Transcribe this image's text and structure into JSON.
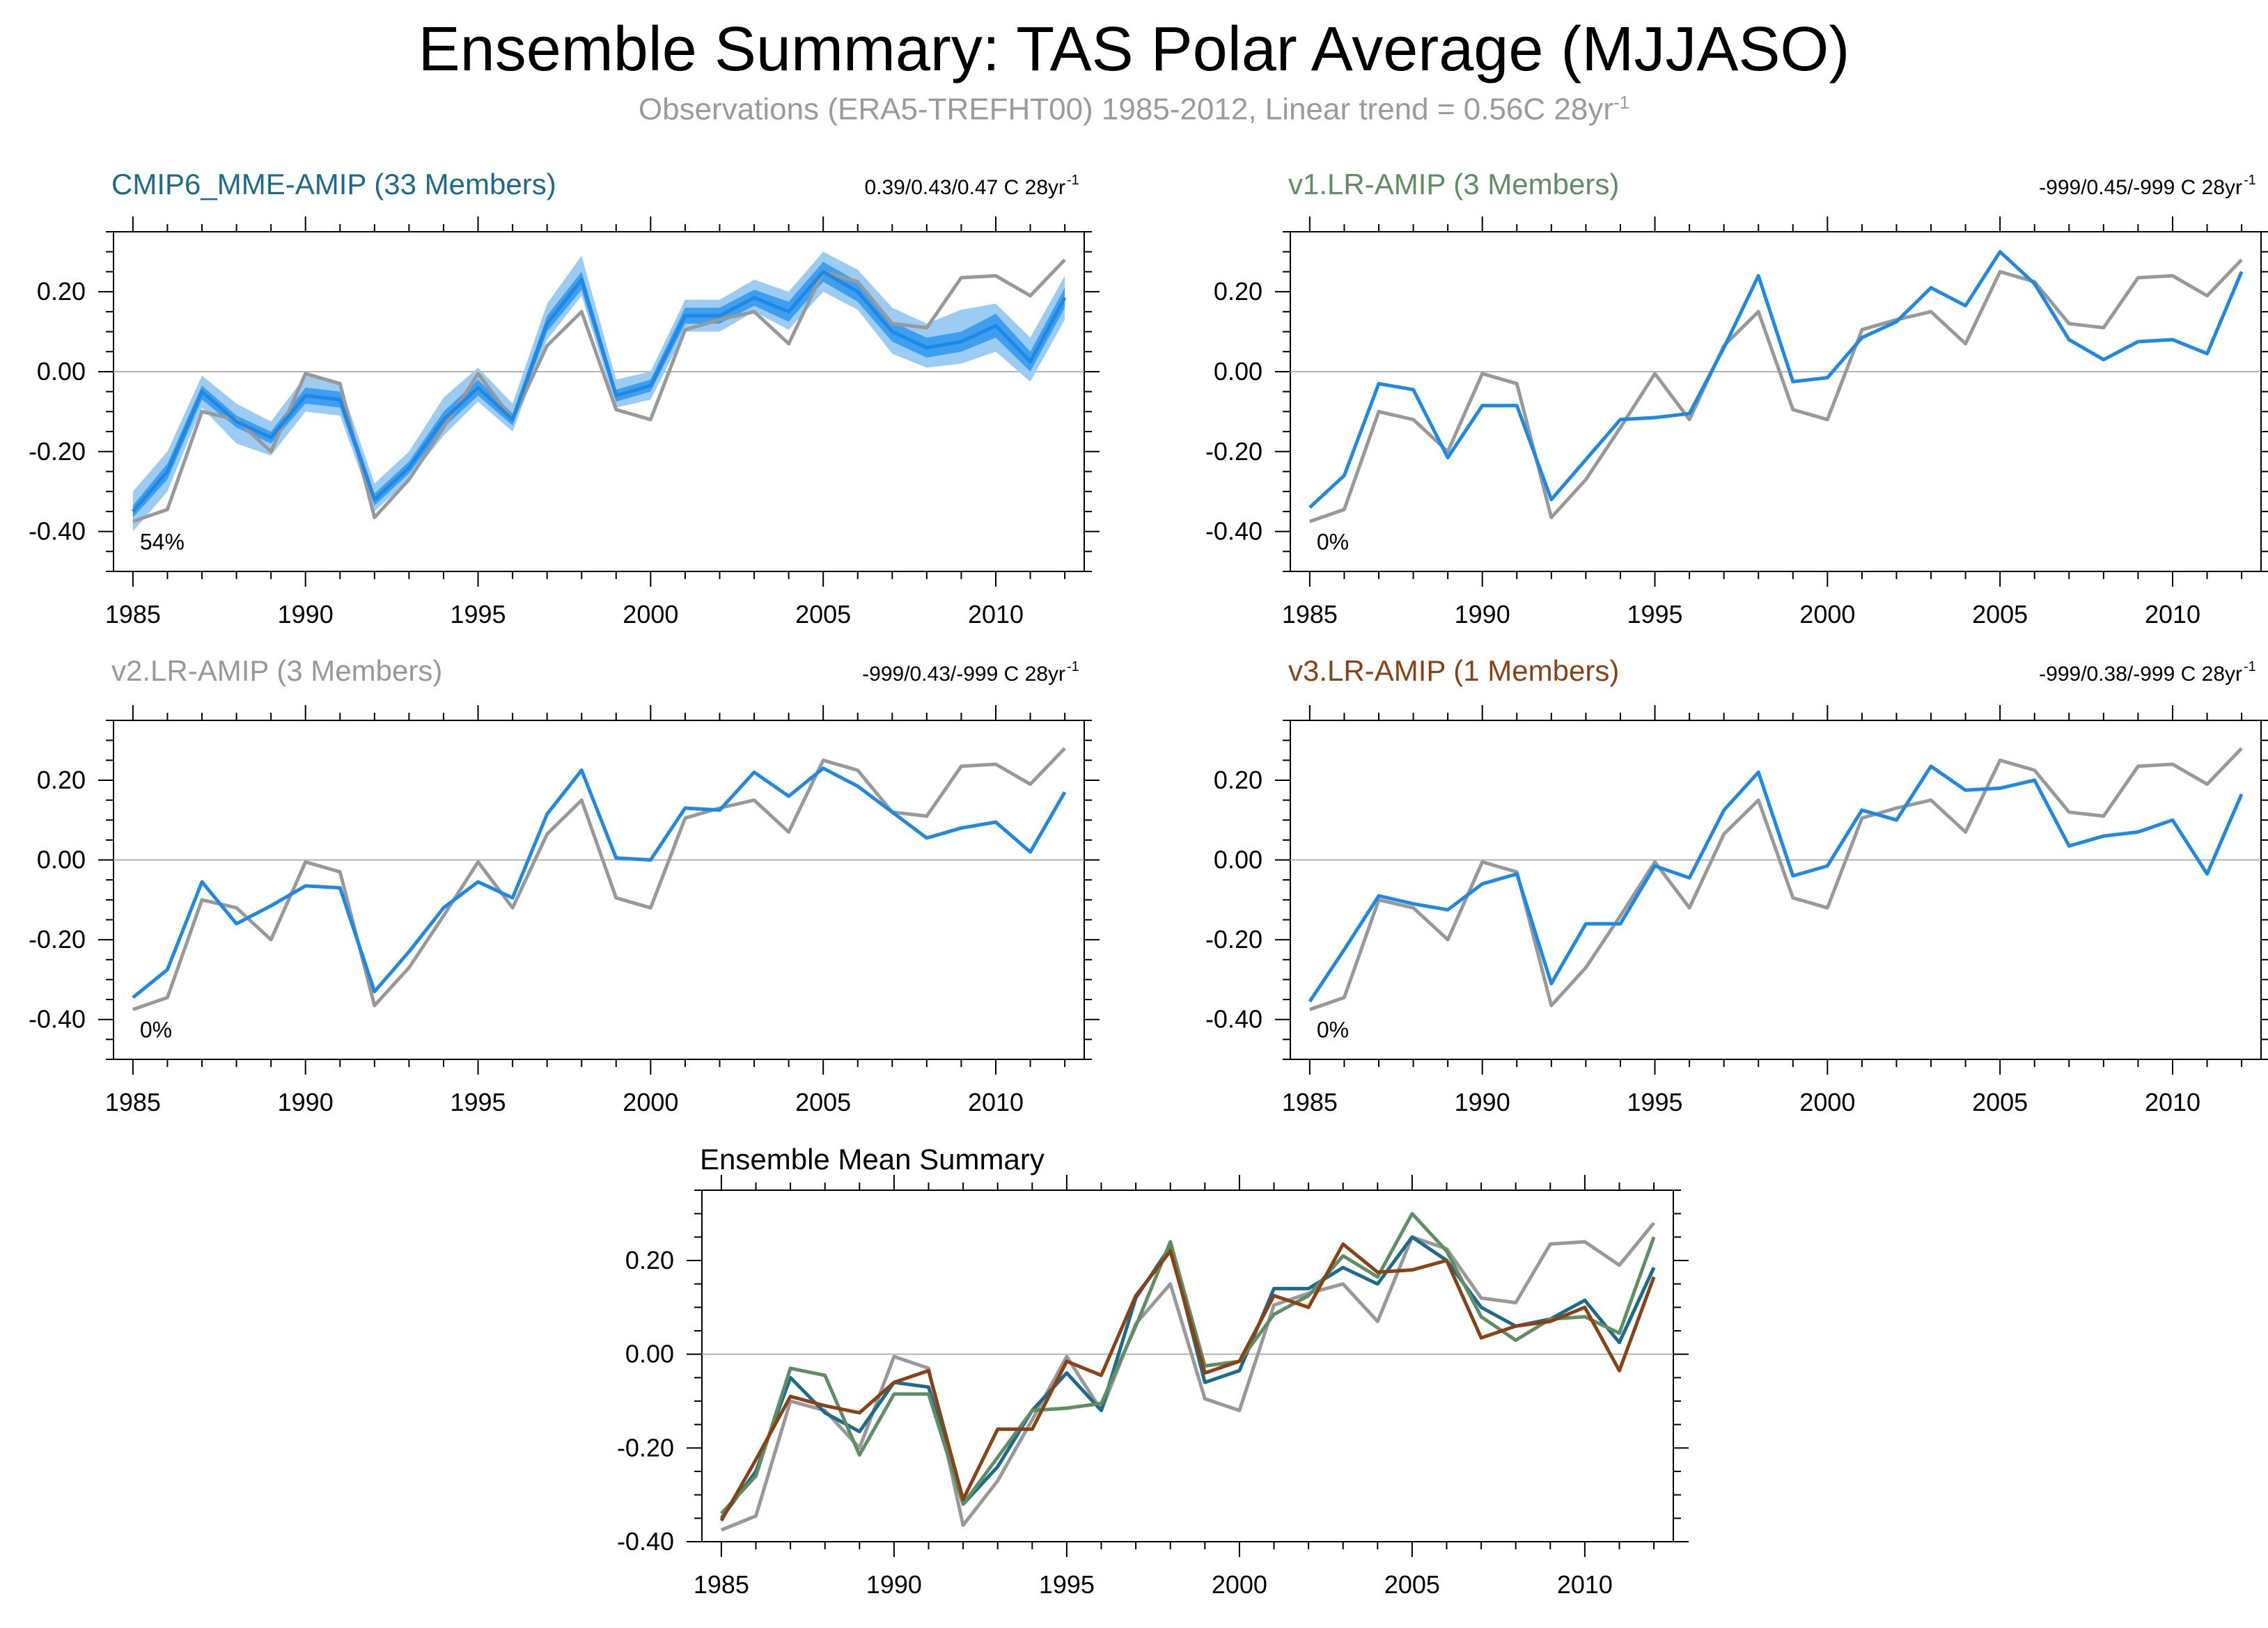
{
  "page": {
    "title": "Ensemble Summary: TAS Polar Average (MJJASO)",
    "subtitle_main": "Observations (ERA5-TREFHT00) 1985-2012, Linear trend = 0.56C 28yr",
    "subtitle_sup": "-1"
  },
  "colors": {
    "obs": "#999999",
    "model_line": "#1e88e5",
    "band_outer": "#9ccbf3",
    "band_inner": "#3e9ff0",
    "zero_line": "#b3b3b3",
    "title_cmip": "#1d6b8c",
    "title_v1": "#5f8e64",
    "title_v2": "#999999",
    "title_v3": "#8a4215"
  },
  "chart_data": [
    {
      "type": "line",
      "title": "CMIP6_MME-AMIP (33 Members)",
      "trend_text": "0.39/0.43/0.47 C 28yr",
      "trend_sup": "-1",
      "percent_label": "54%",
      "xlim": [
        1985,
        2012
      ],
      "ylim": [
        -0.5,
        0.35
      ],
      "xticks": [
        1985,
        1990,
        1995,
        2000,
        2005,
        2010
      ],
      "yticks": [
        -0.4,
        -0.2,
        0.0,
        0.2
      ],
      "ytick_labels": [
        "-0.40",
        "-0.20",
        "0.00",
        "0.20"
      ],
      "x": [
        1985,
        1986,
        1987,
        1988,
        1989,
        1990,
        1991,
        1992,
        1993,
        1994,
        1995,
        1996,
        1997,
        1998,
        1999,
        2000,
        2001,
        2002,
        2003,
        2004,
        2005,
        2006,
        2007,
        2008,
        2009,
        2010,
        2011,
        2012
      ],
      "series": [
        {
          "name": "",
          "role": "obs",
          "values": [
            -0.375,
            -0.345,
            -0.1,
            -0.12,
            -0.2,
            -0.005,
            -0.03,
            -0.365,
            -0.27,
            -0.14,
            -0.005,
            -0.12,
            0.065,
            0.15,
            -0.095,
            -0.12,
            0.105,
            0.13,
            0.15,
            0.07,
            0.25,
            0.225,
            0.12,
            0.11,
            0.235,
            0.24,
            0.19,
            0.28
          ]
        },
        {
          "name": "",
          "role": "mean",
          "values": [
            -0.35,
            -0.25,
            -0.05,
            -0.125,
            -0.165,
            -0.06,
            -0.07,
            -0.32,
            -0.24,
            -0.12,
            -0.04,
            -0.12,
            0.12,
            0.23,
            -0.06,
            -0.035,
            0.14,
            0.14,
            0.185,
            0.15,
            0.25,
            0.2,
            0.1,
            0.06,
            0.075,
            0.115,
            0.025,
            0.185
          ]
        },
        {
          "name": "",
          "role": "band_inner_lo",
          "values": [
            -0.365,
            -0.27,
            -0.07,
            -0.14,
            -0.18,
            -0.08,
            -0.09,
            -0.335,
            -0.255,
            -0.14,
            -0.06,
            -0.135,
            0.1,
            0.205,
            -0.075,
            -0.05,
            0.12,
            0.12,
            0.165,
            0.125,
            0.225,
            0.175,
            0.075,
            0.035,
            0.05,
            0.085,
            0.0,
            0.16
          ]
        },
        {
          "name": "",
          "role": "band_inner_hi",
          "values": [
            -0.335,
            -0.23,
            -0.035,
            -0.11,
            -0.15,
            -0.04,
            -0.05,
            -0.305,
            -0.225,
            -0.1,
            -0.02,
            -0.105,
            0.14,
            0.25,
            -0.045,
            -0.02,
            0.16,
            0.16,
            0.205,
            0.175,
            0.275,
            0.225,
            0.125,
            0.085,
            0.1,
            0.145,
            0.05,
            0.21
          ]
        },
        {
          "name": "",
          "role": "band_outer_lo",
          "values": [
            -0.4,
            -0.3,
            -0.09,
            -0.18,
            -0.21,
            -0.1,
            -0.11,
            -0.35,
            -0.27,
            -0.16,
            -0.075,
            -0.15,
            0.08,
            0.19,
            -0.09,
            -0.07,
            0.1,
            0.1,
            0.15,
            0.105,
            0.2,
            0.155,
            0.045,
            0.01,
            0.02,
            0.05,
            -0.025,
            0.13
          ]
        },
        {
          "name": "",
          "role": "band_outer_hi",
          "values": [
            -0.3,
            -0.2,
            -0.01,
            -0.08,
            -0.125,
            -0.01,
            -0.03,
            -0.28,
            -0.2,
            -0.065,
            0.01,
            -0.08,
            0.17,
            0.29,
            -0.02,
            0.0,
            0.18,
            0.18,
            0.23,
            0.2,
            0.3,
            0.255,
            0.16,
            0.12,
            0.155,
            0.17,
            0.085,
            0.24
          ]
        }
      ]
    },
    {
      "type": "line",
      "title": "v1.LR-AMIP (3 Members)",
      "trend_text": "-999/0.45/-999 C 28yr",
      "trend_sup": "-1",
      "percent_label": "0%",
      "xlim": [
        1985,
        2012
      ],
      "ylim": [
        -0.5,
        0.35
      ],
      "xticks": [
        1985,
        1990,
        1995,
        2000,
        2005,
        2010
      ],
      "yticks": [
        -0.4,
        -0.2,
        0.0,
        0.2
      ],
      "ytick_labels": [
        "-0.40",
        "-0.20",
        "0.00",
        "0.20"
      ],
      "x": [
        1985,
        1986,
        1987,
        1988,
        1989,
        1990,
        1991,
        1992,
        1993,
        1994,
        1995,
        1996,
        1997,
        1998,
        1999,
        2000,
        2001,
        2002,
        2003,
        2004,
        2005,
        2006,
        2007,
        2008,
        2009,
        2010,
        2011,
        2012
      ],
      "series": [
        {
          "name": "",
          "role": "obs",
          "values": [
            -0.375,
            -0.345,
            -0.1,
            -0.12,
            -0.2,
            -0.005,
            -0.03,
            -0.365,
            -0.27,
            -0.14,
            -0.005,
            -0.12,
            0.065,
            0.15,
            -0.095,
            -0.12,
            0.105,
            0.13,
            0.15,
            0.07,
            0.25,
            0.225,
            0.12,
            0.11,
            0.235,
            0.24,
            0.19,
            0.28
          ]
        },
        {
          "name": "",
          "role": "mean",
          "values": [
            -0.34,
            -0.26,
            -0.03,
            -0.045,
            -0.215,
            -0.085,
            -0.085,
            -0.32,
            -0.22,
            -0.12,
            -0.115,
            -0.105,
            0.06,
            0.24,
            -0.025,
            -0.015,
            0.085,
            0.125,
            0.21,
            0.165,
            0.3,
            0.22,
            0.08,
            0.03,
            0.075,
            0.08,
            0.045,
            0.25
          ]
        }
      ]
    },
    {
      "type": "line",
      "title": "v2.LR-AMIP (3 Members)",
      "trend_text": "-999/0.43/-999 C 28yr",
      "trend_sup": "-1",
      "percent_label": "0%",
      "xlim": [
        1985,
        2012
      ],
      "ylim": [
        -0.5,
        0.35
      ],
      "xticks": [
        1985,
        1990,
        1995,
        2000,
        2005,
        2010
      ],
      "yticks": [
        -0.4,
        -0.2,
        0.0,
        0.2
      ],
      "ytick_labels": [
        "-0.40",
        "-0.20",
        "0.00",
        "0.20"
      ],
      "x": [
        1985,
        1986,
        1987,
        1988,
        1989,
        1990,
        1991,
        1992,
        1993,
        1994,
        1995,
        1996,
        1997,
        1998,
        1999,
        2000,
        2001,
        2002,
        2003,
        2004,
        2005,
        2006,
        2007,
        2008,
        2009,
        2010,
        2011,
        2012
      ],
      "series": [
        {
          "name": "",
          "role": "obs",
          "values": [
            -0.375,
            -0.345,
            -0.1,
            -0.12,
            -0.2,
            -0.005,
            -0.03,
            -0.365,
            -0.27,
            -0.14,
            -0.005,
            -0.12,
            0.065,
            0.15,
            -0.095,
            -0.12,
            0.105,
            0.13,
            0.15,
            0.07,
            0.25,
            0.225,
            0.12,
            0.11,
            0.235,
            0.24,
            0.19,
            0.28
          ]
        },
        {
          "name": "",
          "role": "mean",
          "values": [
            -0.345,
            -0.275,
            -0.055,
            -0.16,
            -0.115,
            -0.065,
            -0.07,
            -0.33,
            -0.23,
            -0.12,
            -0.055,
            -0.095,
            0.115,
            0.225,
            0.005,
            0.0,
            0.13,
            0.125,
            0.22,
            0.16,
            0.23,
            0.185,
            0.12,
            0.055,
            0.08,
            0.095,
            0.02,
            0.17
          ]
        }
      ]
    },
    {
      "type": "line",
      "title": "v3.LR-AMIP (1 Members)",
      "trend_text": "-999/0.38/-999 C 28yr",
      "trend_sup": "-1",
      "percent_label": "0%",
      "xlim": [
        1985,
        2012
      ],
      "ylim": [
        -0.5,
        0.35
      ],
      "xticks": [
        1985,
        1990,
        1995,
        2000,
        2005,
        2010
      ],
      "yticks": [
        -0.4,
        -0.2,
        0.0,
        0.2
      ],
      "ytick_labels": [
        "-0.40",
        "-0.20",
        "0.00",
        "0.20"
      ],
      "x": [
        1985,
        1986,
        1987,
        1988,
        1989,
        1990,
        1991,
        1992,
        1993,
        1994,
        1995,
        1996,
        1997,
        1998,
        1999,
        2000,
        2001,
        2002,
        2003,
        2004,
        2005,
        2006,
        2007,
        2008,
        2009,
        2010,
        2011,
        2012
      ],
      "series": [
        {
          "name": "",
          "role": "obs",
          "values": [
            -0.375,
            -0.345,
            -0.1,
            -0.12,
            -0.2,
            -0.005,
            -0.03,
            -0.365,
            -0.27,
            -0.14,
            -0.005,
            -0.12,
            0.065,
            0.15,
            -0.095,
            -0.12,
            0.105,
            0.13,
            0.15,
            0.07,
            0.25,
            0.225,
            0.12,
            0.11,
            0.235,
            0.24,
            0.19,
            0.28
          ]
        },
        {
          "name": "",
          "role": "mean",
          "values": [
            -0.355,
            -0.225,
            -0.09,
            -0.11,
            -0.125,
            -0.06,
            -0.035,
            -0.31,
            -0.16,
            -0.16,
            -0.015,
            -0.045,
            0.125,
            0.22,
            -0.04,
            -0.015,
            0.125,
            0.1,
            0.235,
            0.175,
            0.18,
            0.2,
            0.035,
            0.06,
            0.07,
            0.1,
            -0.035,
            0.165
          ]
        }
      ]
    },
    {
      "type": "line",
      "title": "Ensemble Mean Summary",
      "xlim": [
        1985,
        2012
      ],
      "ylim": [
        -0.4,
        0.35
      ],
      "xticks": [
        1985,
        1990,
        1995,
        2000,
        2005,
        2010
      ],
      "yticks": [
        -0.4,
        -0.2,
        0.0,
        0.2
      ],
      "ytick_labels": [
        "-0.40",
        "-0.20",
        "0.00",
        "0.20"
      ],
      "x": [
        1985,
        1986,
        1987,
        1988,
        1989,
        1990,
        1991,
        1992,
        1993,
        1994,
        1995,
        1996,
        1997,
        1998,
        1999,
        2000,
        2001,
        2002,
        2003,
        2004,
        2005,
        2006,
        2007,
        2008,
        2009,
        2010,
        2011,
        2012
      ],
      "series": [
        {
          "name": "",
          "color": "#999999",
          "values": [
            -0.375,
            -0.345,
            -0.1,
            -0.12,
            -0.2,
            -0.005,
            -0.03,
            -0.365,
            -0.27,
            -0.14,
            -0.005,
            -0.12,
            0.065,
            0.15,
            -0.095,
            -0.12,
            0.105,
            0.13,
            0.15,
            0.07,
            0.25,
            0.225,
            0.12,
            0.11,
            0.235,
            0.24,
            0.19,
            0.28
          ]
        },
        {
          "name": "",
          "color": "#1d6b8c",
          "values": [
            -0.35,
            -0.25,
            -0.05,
            -0.125,
            -0.165,
            -0.06,
            -0.07,
            -0.32,
            -0.24,
            -0.12,
            -0.04,
            -0.12,
            0.12,
            0.23,
            -0.06,
            -0.035,
            0.14,
            0.14,
            0.185,
            0.15,
            0.25,
            0.2,
            0.1,
            0.06,
            0.075,
            0.115,
            0.025,
            0.185
          ]
        },
        {
          "name": "",
          "color": "#5f8e64",
          "values": [
            -0.34,
            -0.26,
            -0.03,
            -0.045,
            -0.215,
            -0.085,
            -0.085,
            -0.32,
            -0.22,
            -0.12,
            -0.115,
            -0.105,
            0.06,
            0.24,
            -0.025,
            -0.015,
            0.085,
            0.125,
            0.21,
            0.165,
            0.3,
            0.22,
            0.08,
            0.03,
            0.075,
            0.08,
            0.045,
            0.25
          ]
        },
        {
          "name": "",
          "color": "#8a4215",
          "values": [
            -0.355,
            -0.225,
            -0.09,
            -0.11,
            -0.125,
            -0.06,
            -0.035,
            -0.31,
            -0.16,
            -0.16,
            -0.015,
            -0.045,
            0.125,
            0.22,
            -0.04,
            -0.015,
            0.125,
            0.1,
            0.235,
            0.175,
            0.18,
            0.2,
            0.035,
            0.06,
            0.07,
            0.1,
            -0.035,
            0.165
          ]
        }
      ]
    }
  ]
}
